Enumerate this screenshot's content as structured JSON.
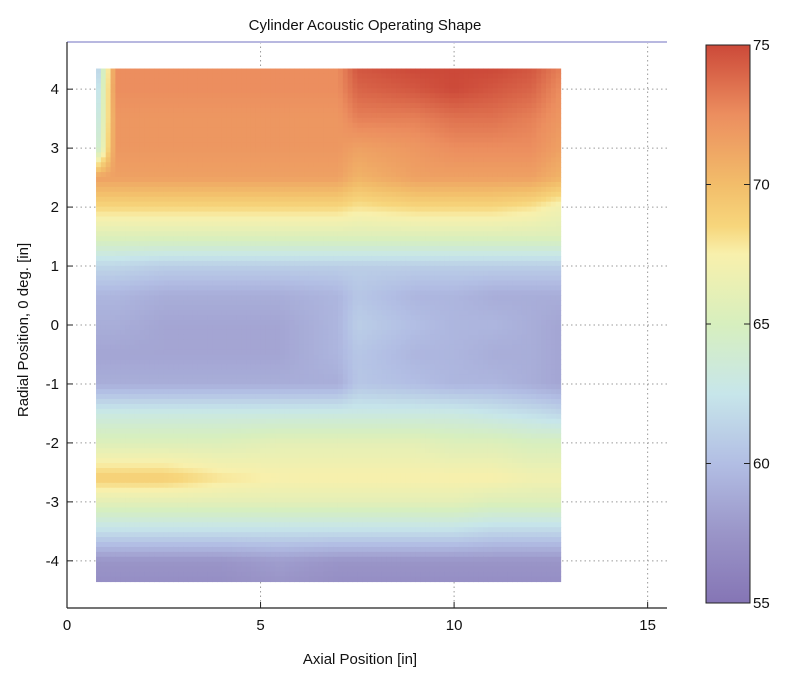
{
  "chart_data": {
    "type": "heatmap",
    "title": "Cylinder Acoustic Operating Shape",
    "xlabel": "Axial Position [in]",
    "ylabel": "Radial Position, 0 deg. [in]",
    "xlim": [
      0,
      15.5
    ],
    "ylim": [
      -4.8,
      4.8
    ],
    "xticks": [
      0,
      5,
      10,
      15
    ],
    "yticks": [
      -4,
      -3,
      -2,
      -1,
      0,
      1,
      2,
      3,
      4
    ],
    "xtick_labels": [
      "0",
      "5",
      "10",
      "15"
    ],
    "ytick_labels": [
      "-4",
      "-3",
      "-2",
      "-1",
      "0",
      "1",
      "2",
      "3",
      "4"
    ],
    "grid": true,
    "data_extent": {
      "x": [
        0.75,
        12.75
      ],
      "y": [
        -4.35,
        4.35
      ]
    },
    "x": [
      0.75,
      1.25,
      2.5,
      4,
      5.5,
      7,
      7.5,
      9,
      10,
      11,
      12,
      12.75
    ],
    "y": [
      -4.35,
      -4,
      -3.5,
      -3,
      -2.6,
      -2,
      -1.5,
      -1,
      -0.5,
      0,
      0.5,
      1,
      1.5,
      2,
      2.5,
      3,
      3.5,
      4,
      4.35
    ],
    "z": [
      [
        57,
        57,
        57,
        57,
        57.5,
        57,
        57,
        57,
        57,
        57,
        57,
        57
      ],
      [
        57.5,
        57.5,
        57.5,
        57.5,
        58,
        57.5,
        57.5,
        57.5,
        57.5,
        57.5,
        57.5,
        57.5
      ],
      [
        62,
        62,
        62,
        62,
        62,
        62,
        62,
        62,
        62,
        61.5,
        61.5,
        61.5
      ],
      [
        66,
        66,
        66,
        66,
        66,
        66,
        66,
        66,
        66,
        65.5,
        65.5,
        65.5
      ],
      [
        69,
        69,
        69,
        68,
        67.5,
        67.5,
        67.5,
        67.5,
        67.5,
        67.5,
        67,
        67
      ],
      [
        65.5,
        65.5,
        65.5,
        65.5,
        66,
        66,
        66,
        66,
        65.5,
        65.5,
        65,
        65
      ],
      [
        63,
        63,
        63,
        63,
        63,
        63,
        63,
        63,
        63,
        62.5,
        62,
        61.5
      ],
      [
        59,
        59,
        59,
        59,
        59,
        59,
        60.5,
        60,
        59.5,
        59.5,
        59,
        58.5
      ],
      [
        58.5,
        58.5,
        58.5,
        58.5,
        58.5,
        59.5,
        60.5,
        59.5,
        59.5,
        59,
        59,
        58.5
      ],
      [
        59,
        59,
        58.5,
        58.5,
        58.5,
        59.5,
        61,
        60,
        59.5,
        59.5,
        59,
        58.5
      ],
      [
        59.5,
        59.5,
        59,
        59,
        59,
        59.5,
        60.5,
        59.5,
        59.5,
        59,
        59,
        59
      ],
      [
        61.5,
        61.5,
        61,
        61,
        61,
        61,
        61,
        61,
        61,
        61,
        61,
        61
      ],
      [
        65.5,
        65.5,
        65.5,
        65.5,
        65.5,
        65.5,
        65.5,
        65.5,
        65.5,
        65.5,
        65.5,
        65.5
      ],
      [
        68.5,
        68.5,
        68.5,
        68.5,
        68.5,
        68.5,
        68,
        68.5,
        68.5,
        68.5,
        68,
        67
      ],
      [
        71.5,
        71.5,
        71.5,
        71.5,
        71.5,
        71.5,
        70.5,
        71.5,
        71.5,
        71.5,
        71.5,
        70.5
      ],
      [
        63,
        72,
        72,
        72,
        72,
        72,
        71.5,
        72,
        72.5,
        72.5,
        72.5,
        71.5
      ],
      [
        62,
        72,
        72,
        72,
        72,
        72,
        73,
        73,
        73.5,
        73.5,
        73,
        72
      ],
      [
        61,
        72.5,
        72.5,
        72.5,
        72.5,
        72.5,
        74,
        74.5,
        75,
        74.5,
        74,
        72.5
      ],
      [
        60,
        72.5,
        72.5,
        72.5,
        72.5,
        72.5,
        74.5,
        75,
        75,
        75,
        74.5,
        73
      ]
    ],
    "colorbar": {
      "limits": [
        55,
        75
      ],
      "ticks": [
        55,
        60,
        65,
        70,
        75
      ],
      "tick_labels": [
        "55",
        "60",
        "65",
        "70",
        "75"
      ],
      "colormap": [
        [
          55,
          "#8575b5"
        ],
        [
          57.5,
          "#9a95c8"
        ],
        [
          60,
          "#b2bee4"
        ],
        [
          62.5,
          "#c7e6ea"
        ],
        [
          65,
          "#d7efbe"
        ],
        [
          67.5,
          "#f8f0ac"
        ],
        [
          68.5,
          "#f7d67c"
        ],
        [
          70,
          "#f2bd6a"
        ],
        [
          72.5,
          "#ec8e5f"
        ],
        [
          75,
          "#cc4939"
        ]
      ]
    }
  }
}
